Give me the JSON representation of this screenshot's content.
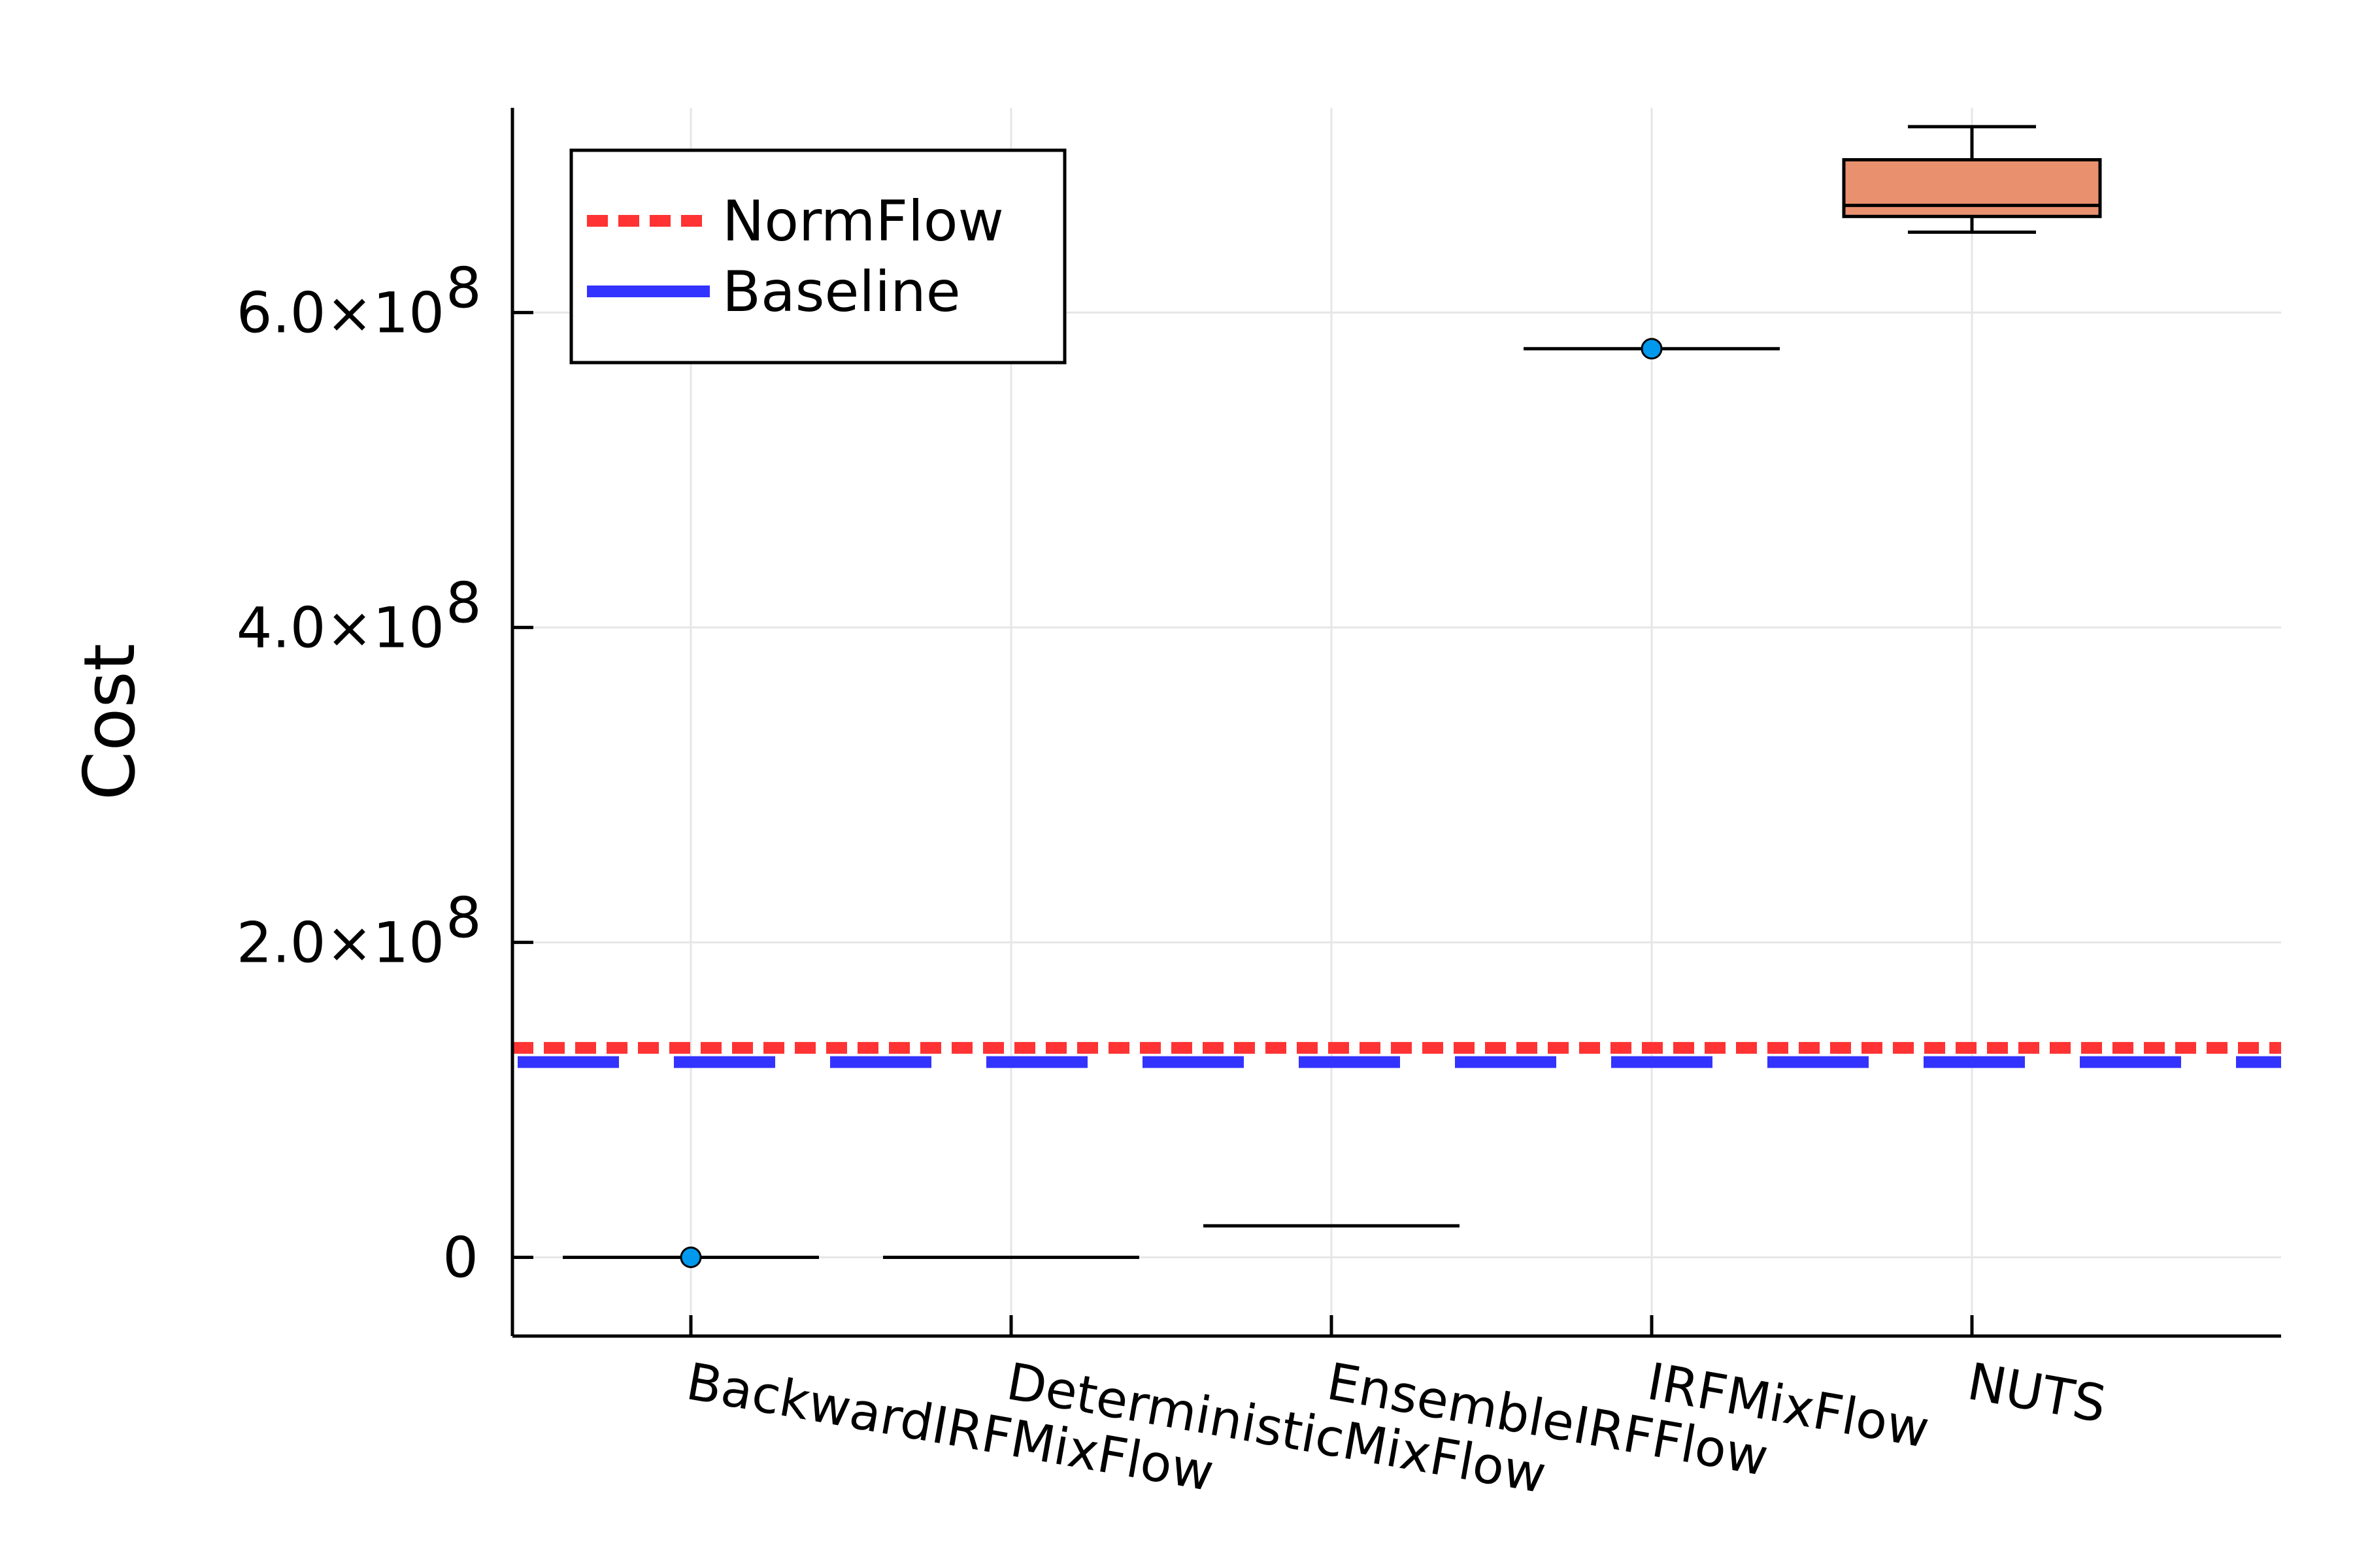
{
  "chart_data": {
    "type": "box",
    "title": "",
    "xlabel": "",
    "ylabel": "Cost",
    "ylim": [
      -50000000,
      730000000
    ],
    "grid": true,
    "legend_position": "top-left",
    "categories": [
      "BackwardIRFMixFlow",
      "DeterministicMixFlow",
      "EnsembleIRFFlow",
      "IRFMixFlow",
      "NUTS"
    ],
    "y_ticks": [
      {
        "value": 0,
        "label": "0"
      },
      {
        "value": 200000000,
        "label": "2.0×10",
        "exponent": "8"
      },
      {
        "value": 400000000,
        "label": "4.0×10",
        "exponent": "8"
      },
      {
        "value": 600000000,
        "label": "6.0×10",
        "exponent": "8"
      }
    ],
    "boxes": [
      {
        "category": "BackwardIRFMixFlow",
        "min": 0,
        "q1": 0,
        "median": 0,
        "q3": 0,
        "max": 0,
        "outliers": [
          0
        ]
      },
      {
        "category": "DeterministicMixFlow",
        "min": 0,
        "q1": 0,
        "median": 0,
        "q3": 0,
        "max": 0,
        "outliers": []
      },
      {
        "category": "EnsembleIRFFlow",
        "min": 20000000,
        "q1": 20000000,
        "median": 20000000,
        "q3": 20000000,
        "max": 20000000,
        "outliers": []
      },
      {
        "category": "IRFMixFlow",
        "min": 577000000,
        "q1": 577000000,
        "median": 577000000,
        "q3": 577000000,
        "max": 577000000,
        "outliers": [
          577000000
        ]
      },
      {
        "category": "NUTS",
        "min": 651000000,
        "q1": 661000000,
        "median": 668000000,
        "q3": 697000000,
        "max": 718000000,
        "outliers": []
      }
    ],
    "reference_lines": [
      {
        "name": "NormFlow",
        "value": 133000000,
        "style": "dotted",
        "color": "#ff3333"
      },
      {
        "name": "Baseline",
        "value": 124000000,
        "style": "dashed",
        "color": "#3333ff"
      }
    ],
    "colors": {
      "box_fill": "#e9916f",
      "outlier_fill": "#0099ee",
      "grid": "#e6e6e6",
      "axis": "#000000"
    }
  }
}
